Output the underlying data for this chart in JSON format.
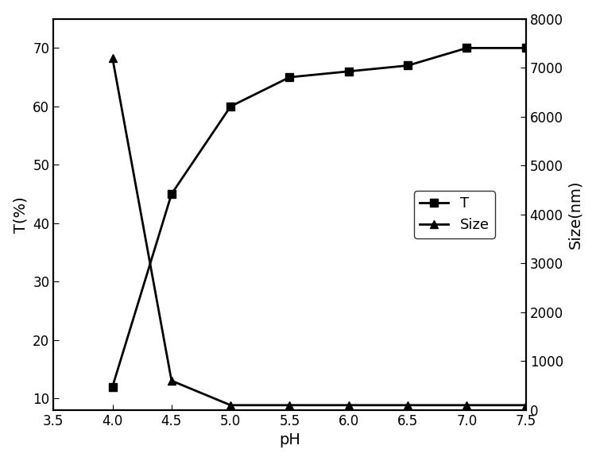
{
  "ph": [
    4.0,
    4.5,
    5.0,
    5.5,
    6.0,
    6.5,
    7.0,
    7.5
  ],
  "T": [
    12,
    45,
    60,
    65,
    66,
    67,
    70,
    70
  ],
  "Size": [
    7200,
    600,
    100,
    100,
    100,
    100,
    100,
    100
  ],
  "xlabel": "pH",
  "ylabel_left": "T(%)",
  "ylabel_right": "Size(nm)",
  "title": "",
  "xlim": [
    3.5,
    7.5
  ],
  "ylim_left": [
    8,
    75
  ],
  "ylim_right": [
    0,
    8000
  ],
  "xticks": [
    3.5,
    4.0,
    4.5,
    5.0,
    5.5,
    6.0,
    6.5,
    7.0,
    7.5
  ],
  "yticks_left": [
    10,
    20,
    30,
    40,
    50,
    60,
    70
  ],
  "yticks_right": [
    0,
    1000,
    2000,
    3000,
    4000,
    5000,
    6000,
    7000,
    8000
  ],
  "line_color": "#000000",
  "marker_T": "s",
  "marker_Size": "^",
  "marker_size": 7,
  "linewidth": 2.0,
  "legend_labels": [
    "T",
    "Size"
  ],
  "legend_loc": "center right",
  "bg_color": "#ffffff",
  "font_size_labels": 14,
  "font_size_ticks": 12,
  "font_size_legend": 13
}
